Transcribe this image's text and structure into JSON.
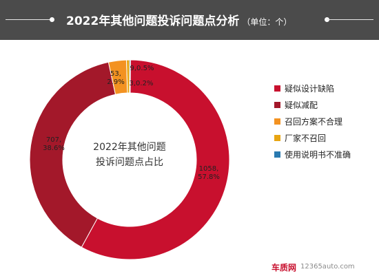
{
  "header": {
    "title": "2022年其他问题投诉问题点分析",
    "unit": "（单位：个）"
  },
  "chart_data": {
    "type": "pie",
    "subtype": "donut",
    "center_label_line1": "2022年其他问题",
    "center_label_line2": "投诉问题点占比",
    "slices": [
      {
        "label": "疑似设计缺陷",
        "value": 1058,
        "percent": "57.8%",
        "color": "#c8102e"
      },
      {
        "label": "疑似减配",
        "value": 707,
        "percent": "38.6%",
        "color": "#a3182a"
      },
      {
        "label": "召回方案不合理",
        "value": 53,
        "percent": "2.9%",
        "color": "#f39221"
      },
      {
        "label": "厂家不召回",
        "value": 9,
        "percent": "0.5%",
        "color": "#e8a512"
      },
      {
        "label": "使用说明书不准确",
        "value": 3,
        "percent": "0.2%",
        "color": "#2a7ab0"
      }
    ],
    "legend_position": "right"
  },
  "footer": {
    "brand": "车质网",
    "url": "12365auto.com"
  }
}
